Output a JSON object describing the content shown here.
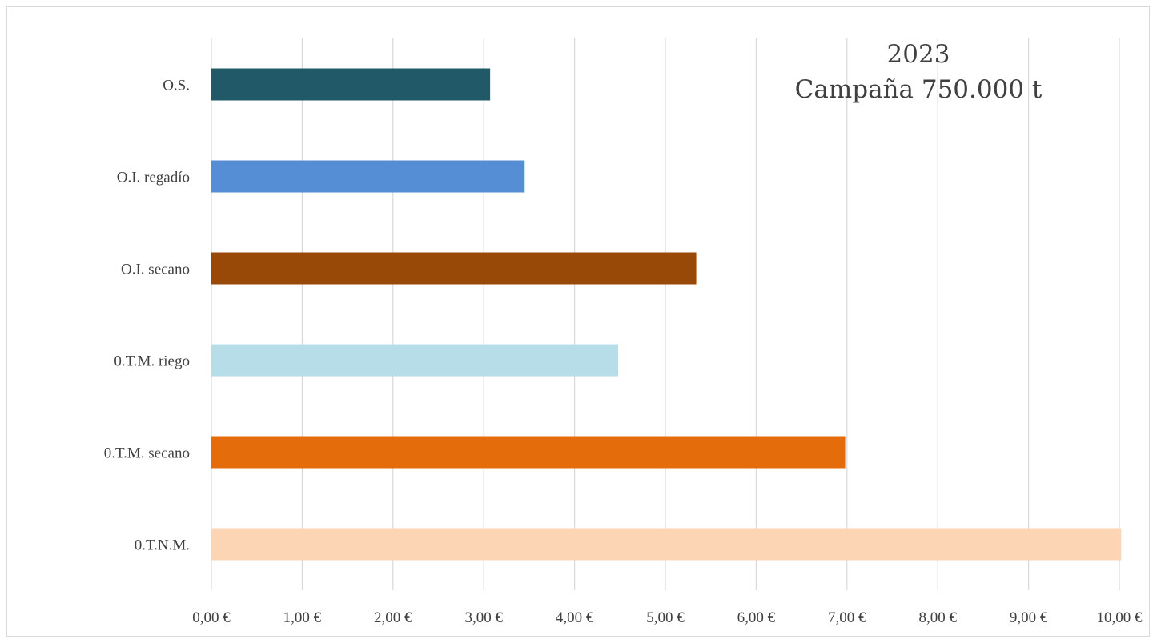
{
  "chart_data": {
    "type": "bar",
    "orientation": "horizontal",
    "title": "2023",
    "subtitle": "Campaña 750.000 t",
    "categories": [
      "O.S.",
      "O.I. regadío",
      "O.I. secano",
      "0.T.M. riego",
      "0.T.M. secano",
      "0.T.N.M."
    ],
    "values": [
      3.07,
      3.45,
      5.34,
      4.48,
      6.98,
      10.02
    ],
    "colors": [
      "#215968",
      "#558ED5",
      "#984807",
      "#B7DEE8",
      "#E46C0A",
      "#FCD5B5"
    ],
    "xlim": [
      0,
      10
    ],
    "xticks": [
      0,
      1,
      2,
      3,
      4,
      5,
      6,
      7,
      8,
      9,
      10
    ],
    "xtick_labels": [
      "0,00 €",
      "1,00 €",
      "2,00 €",
      "3,00 €",
      "4,00 €",
      "5,00 €",
      "6,00 €",
      "7,00 €",
      "8,00 €",
      "9,00 €",
      "10,00 €"
    ],
    "xlabel": "",
    "ylabel": "",
    "grid": true,
    "legend": "none"
  }
}
